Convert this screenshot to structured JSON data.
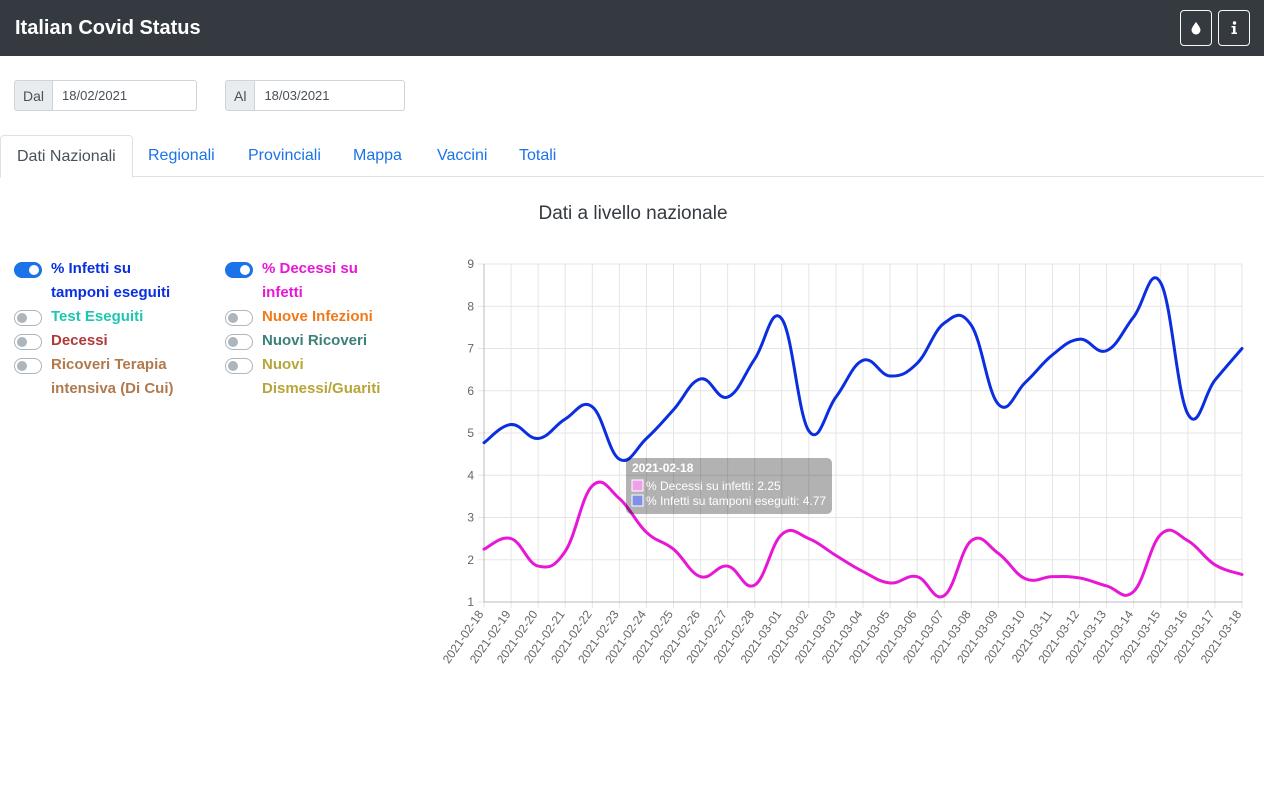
{
  "header": {
    "title": "Italian Covid Status",
    "theme_icon": "droplet-icon",
    "info_icon": "info-icon"
  },
  "dates": {
    "from_label": "Dal",
    "from_value": "18/02/2021",
    "to_label": "Al",
    "to_value": "18/03/2021"
  },
  "tabs": [
    "Dati Nazionali",
    "Regionali",
    "Provinciali",
    "Mappa",
    "Vaccini",
    "Totali"
  ],
  "chart_title": "Dati a livello nazionale",
  "toggles": [
    {
      "label1": "% Infetti su",
      "label2": "tamponi eseguiti",
      "on": true,
      "color": "#0a2ee0"
    },
    {
      "label1": "% Decessi su",
      "label2": "infetti",
      "on": true,
      "color": "#e817d6"
    },
    {
      "label1": "Test Eseguiti",
      "label2": "",
      "on": false,
      "color": "#1fc7b0"
    },
    {
      "label1": "Nuove Infezioni",
      "label2": "",
      "on": false,
      "color": "#f07a1a"
    },
    {
      "label1": "Decessi",
      "label2": "",
      "on": false,
      "color": "#b03a3a"
    },
    {
      "label1": "Nuovi Ricoveri",
      "label2": "",
      "on": false,
      "color": "#3d8079"
    },
    {
      "label1": "Ricoveri Terapia",
      "label2": "intensiva (Di Cui)",
      "on": false,
      "color": "#b07a4e"
    },
    {
      "label1": "Nuovi",
      "label2": "Dismessi/Guariti",
      "on": false,
      "color": "#b8a53a"
    }
  ],
  "chart_data": {
    "type": "line",
    "x": [
      "2021-02-18",
      "2021-02-19",
      "2021-02-20",
      "2021-02-21",
      "2021-02-22",
      "2021-02-23",
      "2021-02-24",
      "2021-02-25",
      "2021-02-26",
      "2021-02-27",
      "2021-02-28",
      "2021-03-01",
      "2021-03-02",
      "2021-03-03",
      "2021-03-04",
      "2021-03-05",
      "2021-03-06",
      "2021-03-07",
      "2021-03-08",
      "2021-03-09",
      "2021-03-10",
      "2021-03-11",
      "2021-03-12",
      "2021-03-13",
      "2021-03-14",
      "2021-03-15",
      "2021-03-16",
      "2021-03-17",
      "2021-03-18"
    ],
    "ylim": [
      1,
      9
    ],
    "yticks": [
      1,
      2,
      3,
      4,
      5,
      6,
      7,
      8,
      9
    ],
    "grid": true,
    "series": [
      {
        "name": "% Infetti su tamponi eseguiti",
        "color": "#0a2ee0",
        "values": [
          4.77,
          5.2,
          4.87,
          5.33,
          5.62,
          4.38,
          4.87,
          5.55,
          6.28,
          5.85,
          6.75,
          7.7,
          5.05,
          5.85,
          6.72,
          6.35,
          6.65,
          7.6,
          7.55,
          5.68,
          6.2,
          6.85,
          7.22,
          6.95,
          7.75,
          8.55,
          5.45,
          6.25,
          7.0
        ]
      },
      {
        "name": "% Decessi su infetti",
        "color": "#e817d6",
        "values": [
          2.25,
          2.5,
          1.85,
          2.2,
          3.75,
          3.45,
          2.65,
          2.25,
          1.6,
          1.85,
          1.4,
          2.6,
          2.5,
          2.1,
          1.72,
          1.45,
          1.6,
          1.15,
          2.45,
          2.15,
          1.55,
          1.6,
          1.57,
          1.38,
          1.25,
          2.6,
          2.45,
          1.88,
          1.65
        ]
      }
    ],
    "tooltip": {
      "title": "2021-02-18",
      "line1": "% Decessi su infetti: 2.25",
      "line2": "% Infetti su tamponi eseguiti: 4.77"
    }
  }
}
